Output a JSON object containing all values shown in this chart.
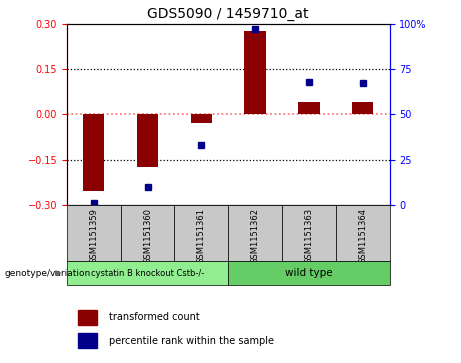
{
  "title": "GDS5090 / 1459710_at",
  "samples": [
    "GSM1151359",
    "GSM1151360",
    "GSM1151361",
    "GSM1151362",
    "GSM1151363",
    "GSM1151364"
  ],
  "transformed_count": [
    -0.255,
    -0.175,
    -0.028,
    0.275,
    0.04,
    0.04
  ],
  "percentile_rank": [
    1,
    10,
    33,
    97,
    68,
    67
  ],
  "ylim_left": [
    -0.3,
    0.3
  ],
  "ylim_right": [
    0,
    100
  ],
  "yticks_left": [
    -0.3,
    -0.15,
    0,
    0.15,
    0.3
  ],
  "yticks_right": [
    0,
    25,
    50,
    75,
    100
  ],
  "bar_color": "#8B0000",
  "dot_color": "#00008B",
  "zero_line_color": "#FF6666",
  "dotted_line_color": "#000000",
  "group1_label": "cystatin B knockout Cstb-/-",
  "group2_label": "wild type",
  "group1_color": "#90EE90",
  "group2_color": "#66CC66",
  "sample_bg_color": "#C8C8C8",
  "genotype_label": "genotype/variation",
  "legend_bar_label": "transformed count",
  "legend_dot_label": "percentile rank within the sample",
  "group1_indices": [
    0,
    1,
    2
  ],
  "group2_indices": [
    3,
    4,
    5
  ]
}
